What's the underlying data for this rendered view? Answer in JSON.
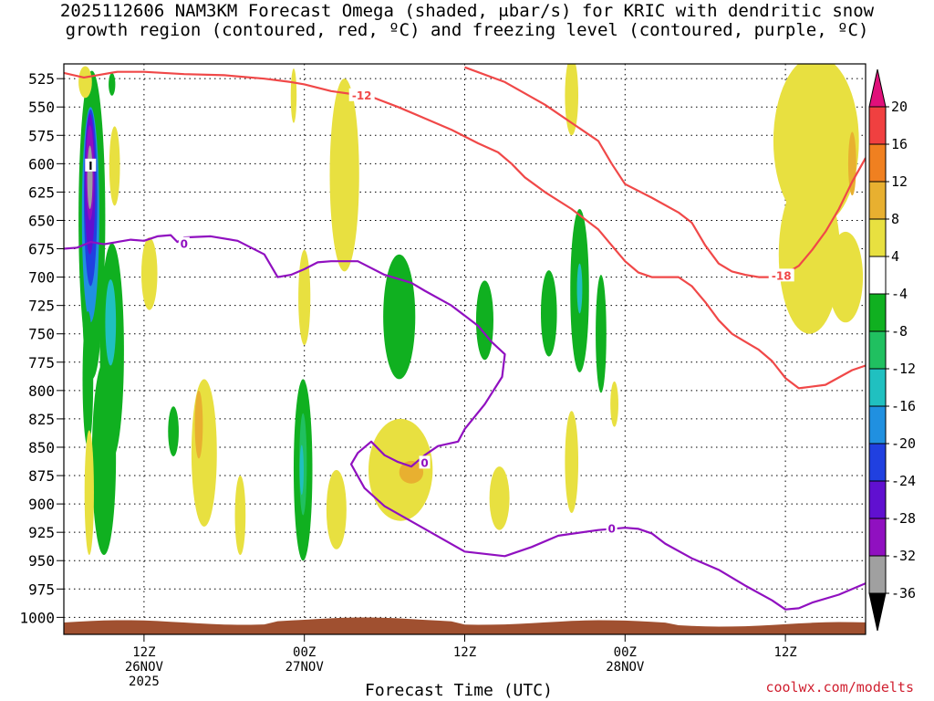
{
  "title_line1": "2025112606 NAM3KM Forecast Omega (shaded, μbar/s) for KRIC with dendritic snow",
  "title_line2": "growth region (contoured, red, ºC) and freezing level (contoured, purple, ºC)",
  "xlabel": "Forecast Time (UTC)",
  "credit": "coolwx.com/modelts",
  "chart_data": {
    "type": "heatmap",
    "title": "2025112606 NAM3KM Forecast Omega (shaded, μbar/s) for KRIC with dendritic snow growth region (contoured, red, ºC) and freezing level (contoured, purple, ºC)",
    "xlabel": "Forecast Time (UTC)",
    "ylabel": "",
    "x_unit": "forecast hours",
    "xlim": [
      0,
      60
    ],
    "ylim": [
      1015,
      512
    ],
    "y_ticks": [
      525,
      550,
      575,
      600,
      625,
      650,
      675,
      700,
      725,
      750,
      775,
      800,
      825,
      850,
      875,
      900,
      925,
      950,
      975,
      1000
    ],
    "x_ticks": [
      {
        "hour": 6,
        "lines": [
          "12Z",
          "26NOV",
          "2025"
        ]
      },
      {
        "hour": 18,
        "lines": [
          "00Z",
          "27NOV"
        ]
      },
      {
        "hour": 30,
        "lines": [
          "12Z"
        ]
      },
      {
        "hour": 42,
        "lines": [
          "00Z",
          "28NOV"
        ]
      },
      {
        "hour": 54,
        "lines": [
          "12Z"
        ]
      }
    ],
    "grid": true,
    "colorbar": {
      "labels": [
        "20",
        "16",
        "12",
        "8",
        "4",
        "-4",
        "-8",
        "-12",
        "-16",
        "-20",
        "-24",
        "-28",
        "-32",
        "-36"
      ],
      "colors": [
        "#e0107a",
        "#f04040",
        "#f08020",
        "#e8b030",
        "#e8e040",
        "#ffffff",
        "#10b020",
        "#20c060",
        "#20c0c0",
        "#2090e0",
        "#2040e0",
        "#6010d0",
        "#9010c0",
        "#a0a0a0",
        "#000000"
      ]
    },
    "colors": {
      "dgz": "#f04848",
      "freezing": "#9010c0",
      "terrain": "#a05030"
    },
    "series": [
      {
        "name": "-12",
        "points": [
          [
            0,
            520
          ],
          [
            1.5,
            524
          ],
          [
            4,
            519
          ],
          [
            6,
            519
          ],
          [
            9,
            521
          ],
          [
            12,
            522
          ],
          [
            15,
            525
          ],
          [
            17,
            528
          ],
          [
            18,
            530
          ],
          [
            20,
            536
          ],
          [
            23,
            541
          ],
          [
            25,
            550
          ],
          [
            27,
            560
          ],
          [
            29,
            570
          ],
          [
            31,
            582
          ],
          [
            32.5,
            590
          ],
          [
            33.5,
            600
          ],
          [
            34.5,
            612
          ],
          [
            36,
            625
          ],
          [
            38,
            640
          ],
          [
            40,
            658
          ],
          [
            41,
            672
          ],
          [
            42,
            686
          ],
          [
            43,
            696
          ],
          [
            44,
            700
          ],
          [
            46,
            700
          ],
          [
            47,
            708
          ],
          [
            48,
            722
          ],
          [
            49,
            738
          ],
          [
            50,
            750
          ],
          [
            51,
            757
          ],
          [
            52,
            764
          ],
          [
            53,
            774
          ],
          [
            54,
            789
          ],
          [
            55,
            798
          ],
          [
            57,
            795
          ],
          [
            59,
            782
          ],
          [
            60,
            778
          ]
        ]
      },
      {
        "name": "-18",
        "points": [
          [
            30,
            515
          ],
          [
            33,
            528
          ],
          [
            36,
            548
          ],
          [
            38,
            564
          ],
          [
            40,
            580
          ],
          [
            41,
            600
          ],
          [
            42,
            618
          ],
          [
            44,
            630
          ],
          [
            46,
            643
          ],
          [
            47,
            652
          ],
          [
            48,
            672
          ],
          [
            49,
            688
          ],
          [
            50,
            695
          ],
          [
            51,
            698
          ],
          [
            52,
            700
          ],
          [
            53,
            700
          ],
          [
            54,
            697
          ],
          [
            55,
            690
          ],
          [
            56,
            676
          ],
          [
            57,
            660
          ],
          [
            58,
            640
          ],
          [
            59,
            616
          ],
          [
            60,
            595
          ]
        ]
      },
      {
        "name": "0",
        "points": [
          [
            0,
            675
          ],
          [
            1,
            674
          ],
          [
            2,
            669
          ],
          [
            3,
            671
          ],
          [
            4,
            669
          ],
          [
            5,
            667
          ],
          [
            6,
            668
          ],
          [
            7,
            664
          ],
          [
            8,
            663
          ],
          [
            8.5,
            669
          ],
          [
            9,
            665
          ],
          [
            11,
            664
          ],
          [
            13,
            668
          ],
          [
            15,
            680
          ],
          [
            16,
            700
          ],
          [
            17,
            698
          ],
          [
            18,
            693
          ],
          [
            19,
            687
          ],
          [
            20,
            686
          ],
          [
            22,
            686
          ],
          [
            24,
            698
          ],
          [
            26,
            705
          ],
          [
            27,
            712
          ],
          [
            29,
            725
          ],
          [
            31,
            743
          ],
          [
            32,
            757
          ],
          [
            33,
            768
          ],
          [
            32.8,
            788
          ],
          [
            31.5,
            812
          ],
          [
            30,
            834
          ],
          [
            29.5,
            845
          ],
          [
            28,
            849
          ],
          [
            27,
            857
          ],
          [
            26,
            867
          ],
          [
            25,
            863
          ],
          [
            24,
            857
          ],
          [
            23,
            845
          ],
          [
            22,
            855
          ],
          [
            21.5,
            865
          ],
          [
            22.5,
            886
          ],
          [
            24,
            902
          ],
          [
            27,
            922
          ],
          [
            30,
            942
          ],
          [
            33,
            946
          ],
          [
            35,
            938
          ],
          [
            37,
            928
          ],
          [
            40,
            923
          ],
          [
            42,
            921
          ],
          [
            43,
            922
          ],
          [
            44,
            926
          ],
          [
            45,
            935
          ],
          [
            47,
            948
          ],
          [
            49,
            958
          ],
          [
            51,
            972
          ],
          [
            53,
            985
          ],
          [
            54,
            993
          ],
          [
            55,
            992
          ],
          [
            56,
            987
          ],
          [
            58,
            980
          ],
          [
            60,
            970
          ]
        ]
      }
    ],
    "label_points": [
      {
        "text": "-12",
        "x": 22.3,
        "y": 540,
        "color": "#f04848"
      },
      {
        "text": "-18",
        "x": 53.7,
        "y": 699,
        "color": "#f04848"
      },
      {
        "text": "0",
        "x": 9,
        "y": 671,
        "color": "#9010c0"
      },
      {
        "text": "0",
        "x": 27,
        "y": 864,
        "color": "#9010c0"
      },
      {
        "text": "0",
        "x": 41,
        "y": 922,
        "color": "#9010c0"
      },
      {
        "text": "I",
        "x": 2,
        "y": 602,
        "color": "#000000"
      }
    ],
    "shaded_blobs": [
      {
        "x": 2.1,
        "y": 648,
        "rx": 1.0,
        "ry": 130,
        "color": "#10b020"
      },
      {
        "x": 2.1,
        "y": 730,
        "rx": 0.7,
        "ry": 60,
        "color": "#10b020"
      },
      {
        "x": 2.0,
        "y": 645,
        "rx": 0.65,
        "ry": 95,
        "color": "#2090e0"
      },
      {
        "x": 2.0,
        "y": 630,
        "rx": 0.5,
        "ry": 78,
        "color": "#2040e0"
      },
      {
        "x": 1.95,
        "y": 618,
        "rx": 0.4,
        "ry": 62,
        "color": "#6010d0"
      },
      {
        "x": 1.95,
        "y": 608,
        "rx": 0.3,
        "ry": 42,
        "color": "#9010c0"
      },
      {
        "x": 1.95,
        "y": 612,
        "rx": 0.2,
        "ry": 28,
        "color": "#a0a0a0"
      },
      {
        "x": 1.6,
        "y": 528,
        "rx": 0.5,
        "ry": 14,
        "color": "#e8e040"
      },
      {
        "x": 3.6,
        "y": 530,
        "rx": 0.25,
        "ry": 10,
        "color": "#10b020"
      },
      {
        "x": 3.8,
        "y": 602,
        "rx": 0.4,
        "ry": 35,
        "color": "#e8e040"
      },
      {
        "x": 3.6,
        "y": 765,
        "rx": 0.9,
        "ry": 95,
        "color": "#10b020"
      },
      {
        "x": 1.8,
        "y": 790,
        "rx": 0.4,
        "ry": 60,
        "color": "#10b020"
      },
      {
        "x": 3.5,
        "y": 740,
        "rx": 0.4,
        "ry": 38,
        "color": "#20c0c0"
      },
      {
        "x": 3.0,
        "y": 860,
        "rx": 0.9,
        "ry": 85,
        "color": "#10b020"
      },
      {
        "x": 1.9,
        "y": 890,
        "rx": 0.35,
        "ry": 55,
        "color": "#e8e040"
      },
      {
        "x": 6.4,
        "y": 697,
        "rx": 0.6,
        "ry": 32,
        "color": "#e8e040"
      },
      {
        "x": 8.2,
        "y": 836,
        "rx": 0.4,
        "ry": 22,
        "color": "#10b020"
      },
      {
        "x": 10.5,
        "y": 855,
        "rx": 0.95,
        "ry": 65,
        "color": "#e8e040"
      },
      {
        "x": 10.1,
        "y": 830,
        "rx": 0.3,
        "ry": 30,
        "color": "#e8b030"
      },
      {
        "x": 13.2,
        "y": 910,
        "rx": 0.4,
        "ry": 35,
        "color": "#e8e040"
      },
      {
        "x": 17.2,
        "y": 540,
        "rx": 0.22,
        "ry": 24,
        "color": "#e8e040"
      },
      {
        "x": 18.0,
        "y": 718,
        "rx": 0.45,
        "ry": 42,
        "color": "#e8e040"
      },
      {
        "x": 17.9,
        "y": 870,
        "rx": 0.7,
        "ry": 80,
        "color": "#10b020"
      },
      {
        "x": 17.9,
        "y": 865,
        "rx": 0.28,
        "ry": 45,
        "color": "#20c060"
      },
      {
        "x": 17.8,
        "y": 870,
        "rx": 0.15,
        "ry": 22,
        "color": "#20c0c0"
      },
      {
        "x": 20.4,
        "y": 905,
        "rx": 0.75,
        "ry": 35,
        "color": "#e8e040"
      },
      {
        "x": 21.0,
        "y": 610,
        "rx": 1.1,
        "ry": 85,
        "color": "#e8e040"
      },
      {
        "x": 25.1,
        "y": 735,
        "rx": 1.2,
        "ry": 55,
        "color": "#10b020"
      },
      {
        "x": 25.2,
        "y": 870,
        "rx": 2.4,
        "ry": 45,
        "color": "#e8e040"
      },
      {
        "x": 26.0,
        "y": 872,
        "rx": 0.9,
        "ry": 10,
        "color": "#e8b030"
      },
      {
        "x": 31.5,
        "y": 738,
        "rx": 0.65,
        "ry": 35,
        "color": "#10b020"
      },
      {
        "x": 32.6,
        "y": 895,
        "rx": 0.75,
        "ry": 28,
        "color": "#e8e040"
      },
      {
        "x": 36.3,
        "y": 732,
        "rx": 0.6,
        "ry": 38,
        "color": "#10b020"
      },
      {
        "x": 38.0,
        "y": 540,
        "rx": 0.5,
        "ry": 35,
        "color": "#e8e040"
      },
      {
        "x": 38.0,
        "y": 863,
        "rx": 0.5,
        "ry": 45,
        "color": "#e8e040"
      },
      {
        "x": 38.6,
        "y": 712,
        "rx": 0.7,
        "ry": 72,
        "color": "#10b020"
      },
      {
        "x": 38.6,
        "y": 710,
        "rx": 0.2,
        "ry": 22,
        "color": "#20c0c0"
      },
      {
        "x": 40.2,
        "y": 750,
        "rx": 0.4,
        "ry": 52,
        "color": "#10b020"
      },
      {
        "x": 41.2,
        "y": 812,
        "rx": 0.3,
        "ry": 20,
        "color": "#e8e040"
      },
      {
        "x": 56.3,
        "y": 580,
        "rx": 3.2,
        "ry": 75,
        "color": "#e8e040"
      },
      {
        "x": 55.8,
        "y": 680,
        "rx": 2.3,
        "ry": 70,
        "color": "#e8e040"
      },
      {
        "x": 58.5,
        "y": 700,
        "rx": 1.3,
        "ry": 40,
        "color": "#e8e040"
      },
      {
        "x": 59.0,
        "y": 600,
        "rx": 0.3,
        "ry": 28,
        "color": "#e8b030"
      }
    ]
  }
}
